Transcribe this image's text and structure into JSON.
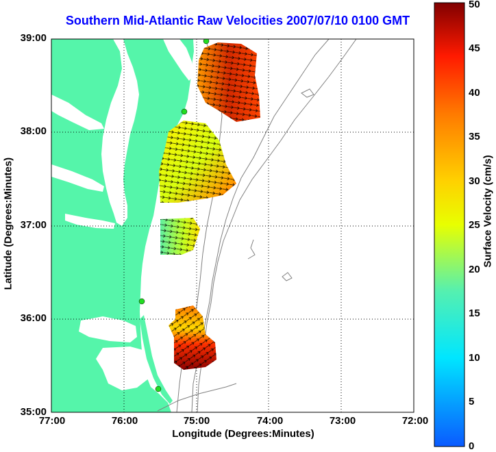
{
  "title": "Southern Mid-Atlantic Raw Velocities 2007/07/10 0100 GMT",
  "xlabel": "Longitude (Degrees:Minutes)",
  "ylabel": "Latitude (Degrees:Minutes)",
  "x_ticks": [
    "77:00",
    "76:00",
    "75:00",
    "74:00",
    "73:00",
    "72:00"
  ],
  "y_ticks": [
    "39:00",
    "38:00",
    "37:00",
    "36:00",
    "35:00"
  ],
  "colorbar": {
    "label": "Surface Velocity (cm/s)",
    "ticks": [
      "50",
      "45",
      "40",
      "35",
      "30",
      "25",
      "20",
      "15",
      "10",
      "5",
      "0"
    ],
    "range": [
      0,
      50
    ]
  },
  "colors": {
    "land": "#55f5aa",
    "title": "#0000ff",
    "bathymetry": "#808080",
    "station": "#22dd22"
  }
}
